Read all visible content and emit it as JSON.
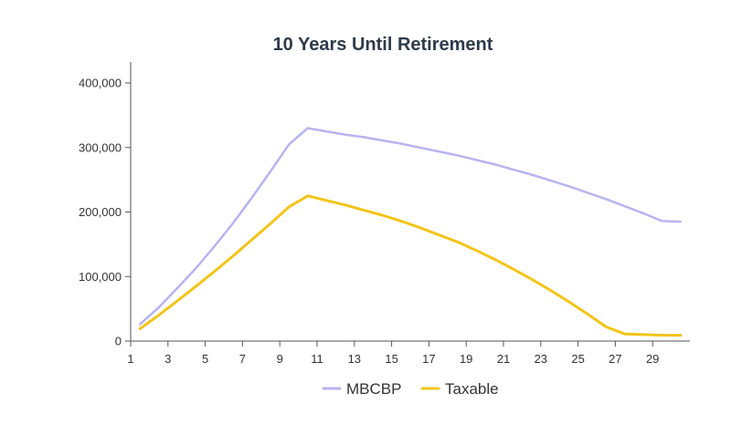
{
  "chart_data": {
    "type": "line",
    "title": "10 Years Until Retirement",
    "xlabel": "",
    "ylabel": "",
    "xlim": [
      1,
      31
    ],
    "ylim": [
      0,
      400000
    ],
    "x_ticks": [
      1,
      3,
      5,
      7,
      9,
      11,
      13,
      15,
      17,
      19,
      21,
      23,
      25,
      27,
      29
    ],
    "y_ticks": [
      0,
      100000,
      200000,
      300000,
      400000
    ],
    "y_tick_labels": [
      "0",
      "100,000",
      "200,000",
      "300,000",
      "400,000"
    ],
    "grid": false,
    "legend_position": "bottom",
    "x": [
      1.5,
      2.5,
      3.5,
      4.5,
      5.5,
      6.5,
      7.5,
      8.5,
      9.5,
      10.5,
      11.5,
      12.5,
      13.5,
      14.5,
      15.5,
      16.5,
      17.5,
      18.5,
      19.5,
      20.5,
      21.5,
      22.5,
      23.5,
      24.5,
      25.5,
      26.5,
      27.5,
      28.5,
      29.5,
      30.5
    ],
    "series": [
      {
        "name": "MBCBP",
        "color": "#b8b4ee",
        "values": [
          26000,
          52000,
          82000,
          113000,
          147000,
          183000,
          222000,
          263000,
          305000,
          330000,
          325000,
          320000,
          316000,
          311000,
          306000,
          300000,
          294000,
          288000,
          281000,
          274000,
          266000,
          258000,
          249000,
          240000,
          230000,
          220000,
          209000,
          198000,
          186000,
          185000
        ]
      },
      {
        "name": "Taxable",
        "color": "#f2c418",
        "values": [
          19000,
          40000,
          62000,
          85000,
          108000,
          132000,
          157000,
          182000,
          208000,
          225000,
          218000,
          211000,
          203000,
          195000,
          186000,
          176000,
          165000,
          154000,
          141000,
          127000,
          112000,
          96000,
          79000,
          61000,
          42000,
          22000,
          11000,
          10000,
          9000,
          9000
        ]
      }
    ]
  }
}
